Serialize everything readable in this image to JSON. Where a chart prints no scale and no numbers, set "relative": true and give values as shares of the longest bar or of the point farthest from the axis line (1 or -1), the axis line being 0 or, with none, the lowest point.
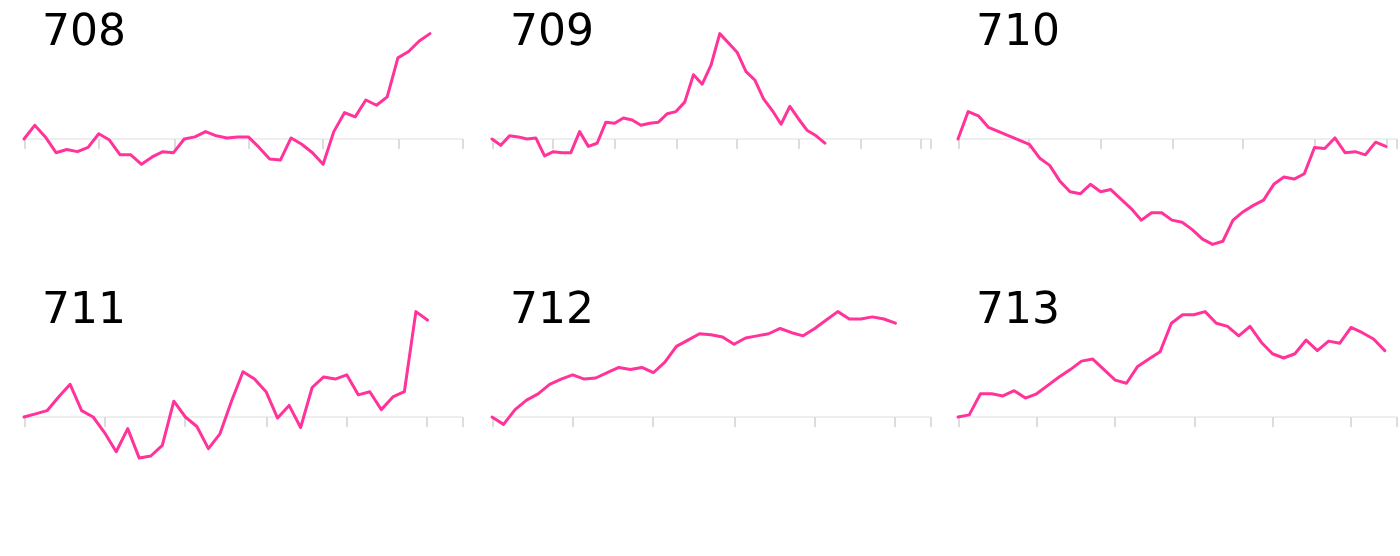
{
  "chart_data": [
    {
      "type": "line",
      "title": "708",
      "relative": true,
      "categories": [
        null,
        null,
        null,
        null,
        null,
        null,
        null,
        null,
        null,
        null,
        null,
        null,
        null,
        null,
        null,
        null,
        null,
        null,
        null,
        null,
        null,
        null,
        null,
        null,
        null,
        null,
        null,
        null,
        null,
        null,
        null,
        null,
        null,
        null,
        null,
        null,
        null,
        null,
        null,
        null,
        null,
        null
      ],
      "series": [
        {
          "color": "#ff3399",
          "values": [
            0,
            0.13,
            0.02,
            -0.13,
            -0.1,
            -0.12,
            -0.08,
            0.05,
            -0.01,
            -0.15,
            -0.15,
            -0.24,
            -0.17,
            -0.12,
            -0.13,
            0,
            0.02,
            0.07,
            0.03,
            0.01,
            0.02,
            0.02,
            -0.08,
            -0.19,
            -0.2,
            0.01,
            -0.05,
            -0.13,
            -0.24,
            0.07,
            0.25,
            0.21,
            0.37,
            0.32,
            0.4,
            0.77,
            0.83,
            0.93,
            1,
            null,
            null,
            null
          ]
        }
      ]
    },
    {
      "type": "line",
      "title": "709",
      "relative": true,
      "categories": [
        null,
        null,
        null,
        null,
        null,
        null,
        null,
        null,
        null,
        null,
        null,
        null,
        null,
        null,
        null,
        null,
        null,
        null,
        null,
        null,
        null,
        null,
        null,
        null,
        null,
        null,
        null,
        null,
        null,
        null,
        null,
        null,
        null,
        null,
        null,
        null,
        null,
        null,
        null,
        null,
        null,
        null,
        null,
        null,
        null,
        null,
        null,
        null,
        null,
        null,
        null
      ],
      "series": [
        {
          "color": "#ff3399",
          "values": [
            0,
            -0.06,
            0.03,
            0.02,
            0,
            0.01,
            -0.16,
            -0.12,
            -0.13,
            -0.13,
            0.07,
            -0.07,
            -0.04,
            0.16,
            0.15,
            0.2,
            0.18,
            0.13,
            0.15,
            0.16,
            0.24,
            0.26,
            0.35,
            0.61,
            0.52,
            0.7,
            1,
            0.91,
            0.82,
            0.64,
            0.56,
            0.38,
            0.27,
            0.14,
            0.31,
            0.19,
            0.08,
            0.03,
            -0.04,
            null,
            null,
            null,
            null,
            null,
            null,
            null,
            null,
            null,
            null,
            null,
            null
          ]
        }
      ]
    },
    {
      "type": "line",
      "title": "710",
      "relative": true,
      "categories": [
        null,
        null,
        null,
        null,
        null,
        null,
        null,
        null,
        null,
        null,
        null,
        null,
        null,
        null,
        null,
        null,
        null,
        null,
        null,
        null,
        null,
        null,
        null,
        null,
        null,
        null,
        null,
        null,
        null,
        null,
        null,
        null,
        null,
        null,
        null,
        null,
        null,
        null,
        null,
        null,
        null,
        null,
        null,
        null
      ],
      "series": [
        {
          "color": "#ff3399",
          "values": [
            0,
            0.26,
            0.22,
            0.11,
            0.07,
            0.03,
            -0.01,
            -0.05,
            -0.18,
            -0.25,
            -0.4,
            -0.5,
            -0.52,
            -0.43,
            -0.5,
            -0.48,
            -0.57,
            -0.66,
            -0.77,
            -0.7,
            -0.7,
            -0.77,
            -0.79,
            -0.86,
            -0.95,
            -1,
            -0.97,
            -0.77,
            -0.69,
            -0.63,
            -0.58,
            -0.43,
            -0.36,
            -0.38,
            -0.33,
            -0.08,
            -0.09,
            0.01,
            -0.13,
            -0.12,
            -0.15,
            -0.03,
            -0.07,
            null
          ]
        }
      ]
    },
    {
      "type": "line",
      "title": "711",
      "relative": true,
      "categories": [
        null,
        null,
        null,
        null,
        null,
        null,
        null,
        null,
        null,
        null,
        null,
        null,
        null,
        null,
        null,
        null,
        null,
        null,
        null,
        null,
        null,
        null,
        null,
        null,
        null,
        null,
        null,
        null,
        null,
        null,
        null,
        null,
        null,
        null,
        null,
        null,
        null,
        null,
        null
      ],
      "series": [
        {
          "color": "#ff3399",
          "values": [
            0,
            0.03,
            0.06,
            0.19,
            0.31,
            0.06,
            0,
            -0.15,
            -0.33,
            -0.11,
            -0.39,
            -0.37,
            -0.27,
            0.15,
            0,
            -0.09,
            -0.3,
            -0.16,
            0.15,
            0.43,
            0.36,
            0.24,
            -0.01,
            0.11,
            -0.1,
            0.28,
            0.38,
            0.36,
            0.4,
            0.21,
            0.24,
            0.07,
            0.19,
            0.24,
            1,
            0.92,
            null,
            null,
            null
          ]
        }
      ]
    },
    {
      "type": "line",
      "title": "712",
      "relative": true,
      "categories": [
        null,
        null,
        null,
        null,
        null,
        null,
        null,
        null,
        null,
        null,
        null,
        null,
        null,
        null,
        null,
        null,
        null,
        null,
        null,
        null,
        null,
        null,
        null,
        null,
        null,
        null,
        null,
        null,
        null,
        null,
        null,
        null,
        null,
        null,
        null,
        null,
        null,
        null,
        null
      ],
      "series": [
        {
          "color": "#ff3399",
          "values": [
            0,
            -0.07,
            0.07,
            0.16,
            0.22,
            0.31,
            0.36,
            0.4,
            0.36,
            0.37,
            0.42,
            0.47,
            0.45,
            0.47,
            0.42,
            0.52,
            0.67,
            0.73,
            0.79,
            0.78,
            0.76,
            0.69,
            0.75,
            0.77,
            0.79,
            0.84,
            0.8,
            0.77,
            0.84,
            0.92,
            1,
            0.93,
            0.93,
            0.95,
            0.93,
            0.89,
            null,
            null,
            null
          ]
        }
      ]
    },
    {
      "type": "line",
      "title": "713",
      "relative": true,
      "categories": [
        null,
        null,
        null,
        null,
        null,
        null,
        null,
        null,
        null,
        null,
        null,
        null,
        null,
        null,
        null,
        null,
        null,
        null,
        null,
        null,
        null,
        null,
        null,
        null,
        null,
        null,
        null,
        null,
        null,
        null,
        null,
        null,
        null,
        null,
        null,
        null,
        null,
        null,
        null,
        null
      ],
      "series": [
        {
          "color": "#ff3399",
          "values": [
            0,
            0.02,
            0.22,
            0.22,
            0.2,
            0.25,
            0.18,
            0.22,
            0.3,
            0.38,
            0.45,
            0.53,
            0.55,
            0.45,
            0.35,
            0.32,
            0.48,
            0.55,
            0.62,
            0.89,
            0.97,
            0.97,
            1,
            0.89,
            0.86,
            0.77,
            0.86,
            0.71,
            0.6,
            0.56,
            0.6,
            0.73,
            0.63,
            0.72,
            0.7,
            0.85,
            0.8,
            0.74,
            0.63,
            null
          ]
        }
      ]
    }
  ]
}
